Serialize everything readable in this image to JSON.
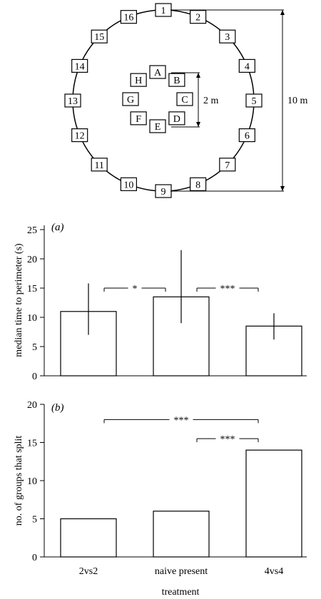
{
  "diagram": {
    "outer_labels": [
      "1",
      "2",
      "3",
      "4",
      "5",
      "6",
      "7",
      "8",
      "9",
      "10",
      "11",
      "12",
      "13",
      "14",
      "15",
      "16"
    ],
    "inner_labels": [
      "A",
      "B",
      "C",
      "D",
      "E",
      "F",
      "G",
      "H"
    ],
    "inner_dim_label": "2 m",
    "outer_dim_label": "10 m"
  },
  "chart_data": [
    {
      "type": "bar",
      "panel": "(a)",
      "categories": [
        "2vs2",
        "naive present",
        "4vs4"
      ],
      "values": [
        11,
        13.5,
        8.5
      ],
      "error_low": [
        7,
        9,
        6.2
      ],
      "error_high": [
        15.8,
        21.5,
        10.7
      ],
      "ylabel": "median time to perimeter (s)",
      "ylim": [
        0,
        25
      ],
      "yticks": [
        0,
        5,
        10,
        15,
        20,
        25
      ],
      "significance": [
        {
          "from": 0,
          "to": 1,
          "label": "*",
          "level": 15
        },
        {
          "from": 1,
          "to": 2,
          "label": "***",
          "level": 15
        }
      ]
    },
    {
      "type": "bar",
      "panel": "(b)",
      "categories": [
        "2vs2",
        "naive present",
        "4vs4"
      ],
      "values": [
        5,
        6,
        14
      ],
      "ylabel": "no. of groups that split",
      "xlabel": "treatment",
      "ylim": [
        0,
        20
      ],
      "yticks": [
        0,
        5,
        10,
        15,
        20
      ],
      "significance": [
        {
          "from": 0,
          "to": 2,
          "label": "***",
          "level": 18
        },
        {
          "from": 1,
          "to": 2,
          "label": "***",
          "level": 15.5
        }
      ]
    }
  ]
}
